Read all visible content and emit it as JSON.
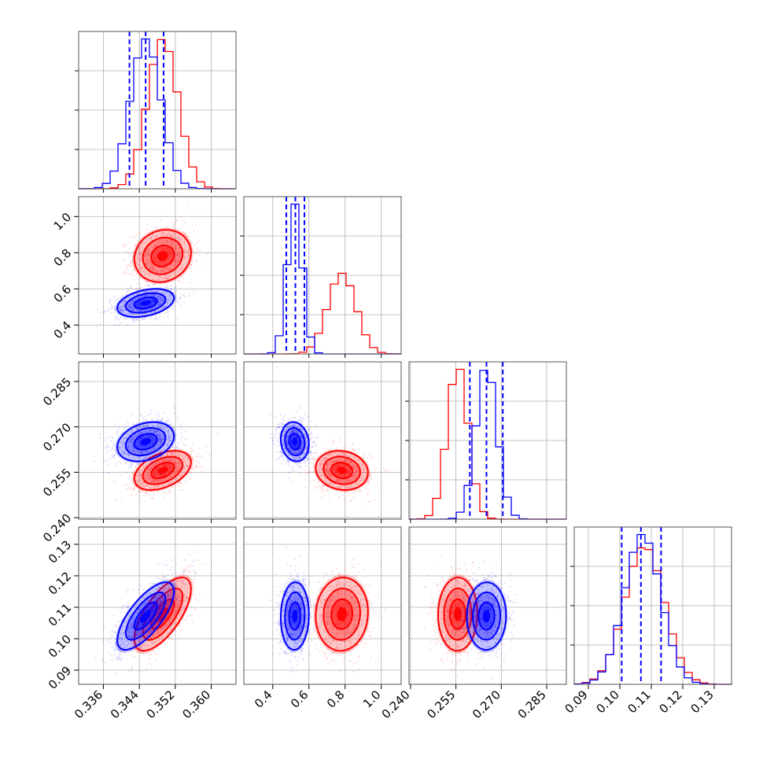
{
  "chart_data": {
    "type": "corner",
    "grid": true,
    "colors": {
      "red": "#ff0000",
      "blue": "#0000ff"
    },
    "params": [
      {
        "range": [
          0.3305,
          0.3655
        ],
        "ticks": [
          0.336,
          0.344,
          0.352,
          0.36
        ],
        "tick_labels": [
          "0.336",
          "0.344",
          "0.352",
          "0.360"
        ]
      },
      {
        "range": [
          0.24,
          1.11
        ],
        "ticks": [
          0.4,
          0.6,
          0.8,
          1.0
        ],
        "tick_labels": [
          "0.4",
          "0.6",
          "0.8",
          "1.0"
        ]
      },
      {
        "range": [
          0.2395,
          0.2915
        ],
        "ticks": [
          0.24,
          0.255,
          0.27,
          0.285
        ],
        "tick_labels": [
          "0.240",
          "0.255",
          "0.270",
          "0.285"
        ]
      },
      {
        "range": [
          0.0855,
          0.1355
        ],
        "ticks": [
          0.09,
          0.1,
          0.11,
          0.12,
          0.13
        ],
        "tick_labels": [
          "0.09",
          "0.10",
          "0.11",
          "0.12",
          "0.13"
        ]
      }
    ],
    "series": [
      {
        "color": "red",
        "means": [
          0.3492,
          0.782,
          0.2556,
          0.1078
        ],
        "sigmas": [
          0.0034,
          0.078,
          0.0035,
          0.0063
        ],
        "correlations": {
          "0-1": 0.12,
          "0-2": 0.42,
          "0-3": 0.68,
          "1-2": -0.12,
          "1-3": 0.05,
          "2-3": 0.02
        }
      },
      {
        "color": "blue",
        "means": [
          0.3454,
          0.522,
          0.2651,
          0.1072
        ],
        "sigmas": [
          0.0034,
          0.042,
          0.0035,
          0.0058
        ],
        "correlations": {
          "0-1": 0.35,
          "0-2": 0.28,
          "0-3": 0.72,
          "1-2": -0.12,
          "1-3": 0.05,
          "2-3": 0.02
        },
        "quantiles": [
          [
            0.3418,
            0.3454,
            0.3494
          ],
          [
            0.475,
            0.525,
            0.575
          ],
          [
            0.2596,
            0.2651,
            0.2705
          ],
          [
            0.1006,
            0.1067,
            0.1131
          ]
        ]
      }
    ]
  }
}
